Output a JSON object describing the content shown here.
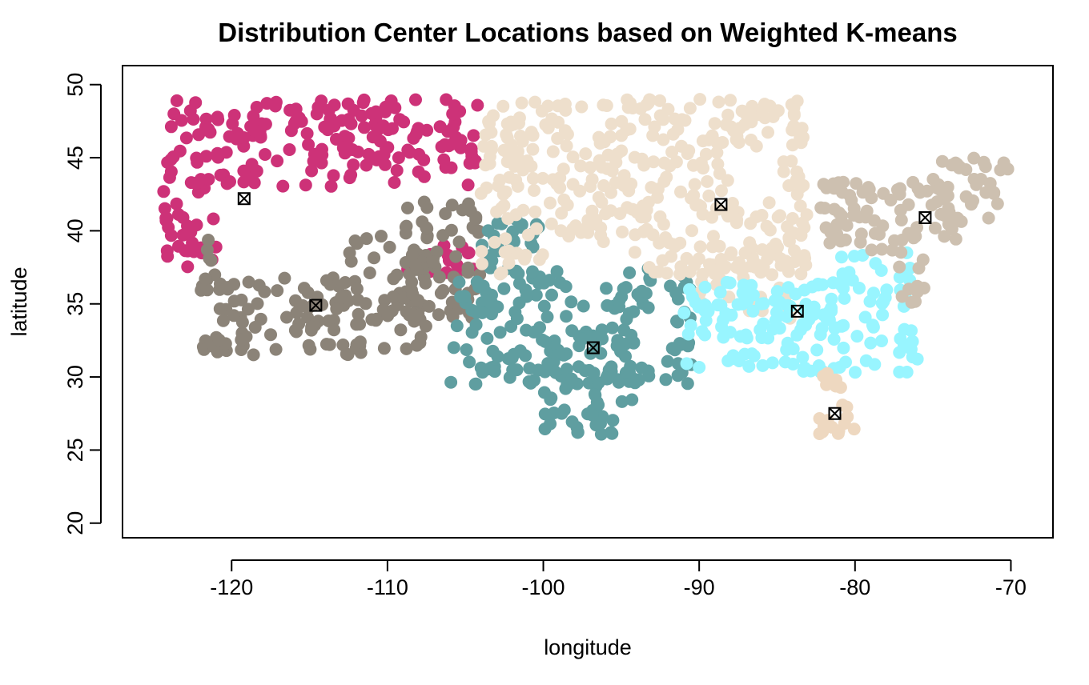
{
  "chart_data": {
    "type": "scatter",
    "title": "Distribution Center Locations based on Weighted K-means",
    "xlabel": "longitude",
    "ylabel": "latitude",
    "xlim": [
      -127,
      -67.3
    ],
    "ylim": [
      19,
      51.3
    ],
    "xticks": [
      -120,
      -110,
      -100,
      -90,
      -80,
      -70
    ],
    "yticks": [
      20,
      25,
      30,
      35,
      40,
      45,
      50
    ],
    "grid": false,
    "legend": "none",
    "clusters": [
      {
        "color": "#CD3278",
        "center": [
          -119.2,
          42.2
        ],
        "regions": [
          [
            -124.4,
            37,
            -104,
            49
          ]
        ],
        "excludes": [
          [
            -121,
            39,
            -104,
            43
          ],
          [
            -121,
            37,
            -109,
            40
          ]
        ]
      },
      {
        "color": "#8B8378",
        "center": [
          -114.6,
          34.9
        ],
        "regions": [
          [
            -122,
            31.5,
            -107,
            40
          ],
          [
            -109,
            34,
            -104,
            42
          ]
        ],
        "excludes": [
          [
            -121,
            36.8,
            -112.5,
            40
          ]
        ]
      },
      {
        "color": "#5F9EA0",
        "center": [
          -96.8,
          32.0
        ],
        "regions": [
          [
            -106,
            29.5,
            -90.5,
            37.5
          ],
          [
            -100,
            26,
            -94,
            31
          ],
          [
            -104,
            37,
            -100,
            41
          ]
        ],
        "excludes": [
          [
            -94,
            31.5,
            -92,
            34
          ],
          [
            -99,
            36.5,
            -94.5,
            38.5
          ]
        ]
      },
      {
        "color": "#EEDFCC",
        "center": [
          -88.6,
          41.8
        ],
        "regions": [
          [
            -104,
            37,
            -83,
            49
          ],
          [
            -90,
            34,
            -84,
            38
          ]
        ],
        "excludes": [
          [
            -88,
            42,
            -84.8,
            45.5
          ],
          [
            -99.5,
            36,
            -94.5,
            39
          ]
        ]
      },
      {
        "color": "#98F5FF",
        "center": [
          -83.7,
          34.5
        ],
        "regions": [
          [
            -91,
            30.3,
            -76,
            36.5
          ],
          [
            -81,
            36.5,
            -76,
            38.5
          ]
        ],
        "excludes": []
      },
      {
        "color": "#EED8C0",
        "center": [
          -81.3,
          27.5
        ],
        "regions": [
          [
            -82.5,
            25.5,
            -80,
            30.3
          ]
        ],
        "excludes": []
      },
      {
        "color": "#CDC0B0",
        "center": [
          -75.5,
          40.9
        ],
        "regions": [
          [
            -82.5,
            38.5,
            -73.5,
            43.5
          ],
          [
            -75,
            40.5,
            -70,
            45
          ],
          [
            -77.5,
            35,
            -75.5,
            38.5
          ]
        ],
        "excludes": []
      }
    ]
  }
}
